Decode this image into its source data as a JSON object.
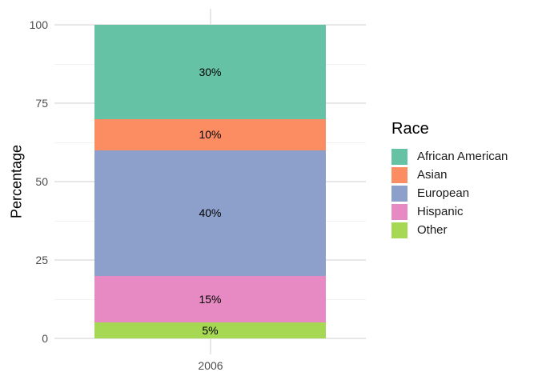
{
  "chart_data": {
    "type": "bar",
    "stacked": true,
    "title": "",
    "xlabel": "",
    "ylabel": "Percentage",
    "categories": [
      "2006"
    ],
    "series": [
      {
        "name": "African American",
        "color": "#66C2A5",
        "values": [
          30
        ],
        "label": "30%"
      },
      {
        "name": "Asian",
        "color": "#FC8D62",
        "values": [
          10
        ],
        "label": "10%"
      },
      {
        "name": "European",
        "color": "#8DA0CB",
        "values": [
          40
        ],
        "label": "40%"
      },
      {
        "name": "Hispanic",
        "color": "#E78AC3",
        "values": [
          15
        ],
        "label": "15%"
      },
      {
        "name": "Other",
        "color": "#A6D854",
        "values": [
          5
        ],
        "label": "5%"
      }
    ],
    "stack_order_bottom_to_top": [
      "Other",
      "Hispanic",
      "European",
      "Asian",
      "African American"
    ],
    "legend_title": "Race",
    "legend_position": "right",
    "ylim": [
      0,
      100
    ],
    "yticks": [
      100,
      75,
      50,
      25,
      0
    ],
    "minor_yticks": [
      87.5,
      62.5,
      37.5,
      12.5
    ],
    "grid": true,
    "colors": {
      "grid_major": "#e7e7e7",
      "grid_minor": "#f2f2f2",
      "axis_text": "#4d4d4d",
      "label_text": "#000000"
    }
  }
}
